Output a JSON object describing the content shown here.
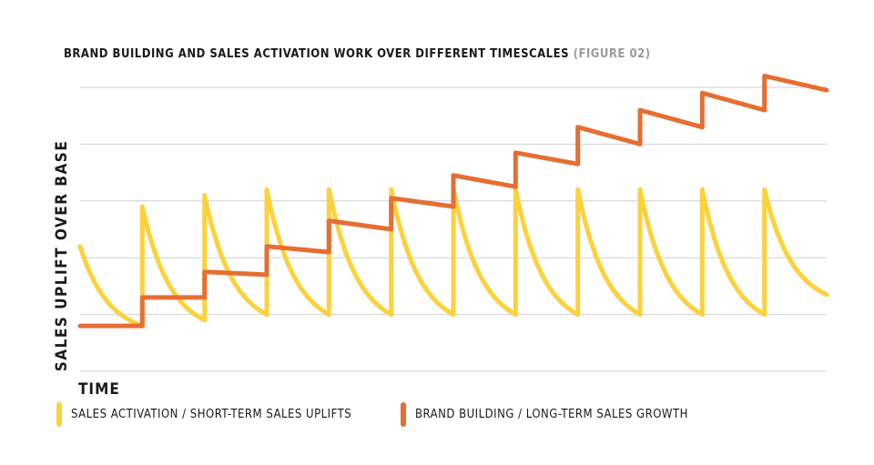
{
  "chart_data": {
    "type": "line",
    "title": "BRAND BUILDING AND SALES ACTIVATION WORK OVER DIFFERENT TIMESCALES",
    "subtitle": "(FIGURE 02)",
    "xlabel": "TIME",
    "ylabel": "SALES UPLIFT OVER BASE",
    "ylim": [
      0,
      5
    ],
    "xlim": [
      0,
      12
    ],
    "grid": true,
    "legend": "bottom",
    "series": [
      {
        "name": "SALES ACTIVATION / SHORT-TERM SALES UPLIFTS",
        "color": "#fcd13c",
        "kind": "sawtooth",
        "cycle_start_x": [
          0,
          1,
          2,
          3,
          4,
          5,
          6,
          7,
          8,
          9,
          10,
          11
        ],
        "cycle_end_x": [
          1,
          2,
          3,
          4,
          5,
          6,
          7,
          8,
          9,
          10,
          11,
          12
        ],
        "peak_y": [
          2.2,
          2.9,
          3.1,
          3.2,
          3.2,
          3.2,
          3.2,
          3.2,
          3.2,
          3.2,
          3.2,
          3.2
        ],
        "trough_y": [
          0.8,
          0.9,
          1.0,
          1.0,
          1.0,
          1.0,
          1.0,
          1.0,
          1.0,
          1.0,
          1.0,
          1.35
        ]
      },
      {
        "name": "BRAND BUILDING / LONG-TERM SALES GROWTH",
        "color": "#e66e33",
        "kind": "step",
        "step_x": [
          0,
          1,
          2,
          3,
          4,
          5,
          6,
          7,
          8,
          9,
          10,
          11
        ],
        "start_y": [
          0.8,
          1.3,
          1.75,
          2.2,
          2.65,
          3.05,
          3.45,
          3.85,
          4.3,
          4.6,
          4.9,
          5.2
        ],
        "end_y": [
          0.8,
          1.3,
          1.7,
          2.1,
          2.5,
          2.9,
          3.25,
          3.65,
          4.0,
          4.3,
          4.6,
          4.95
        ]
      }
    ]
  },
  "legend": {
    "activation_label": "SALES ACTIVATION / SHORT-TERM SALES UPLIFTS",
    "brand_label": "BRAND BUILDING / LONG-TERM SALES GROWTH"
  }
}
